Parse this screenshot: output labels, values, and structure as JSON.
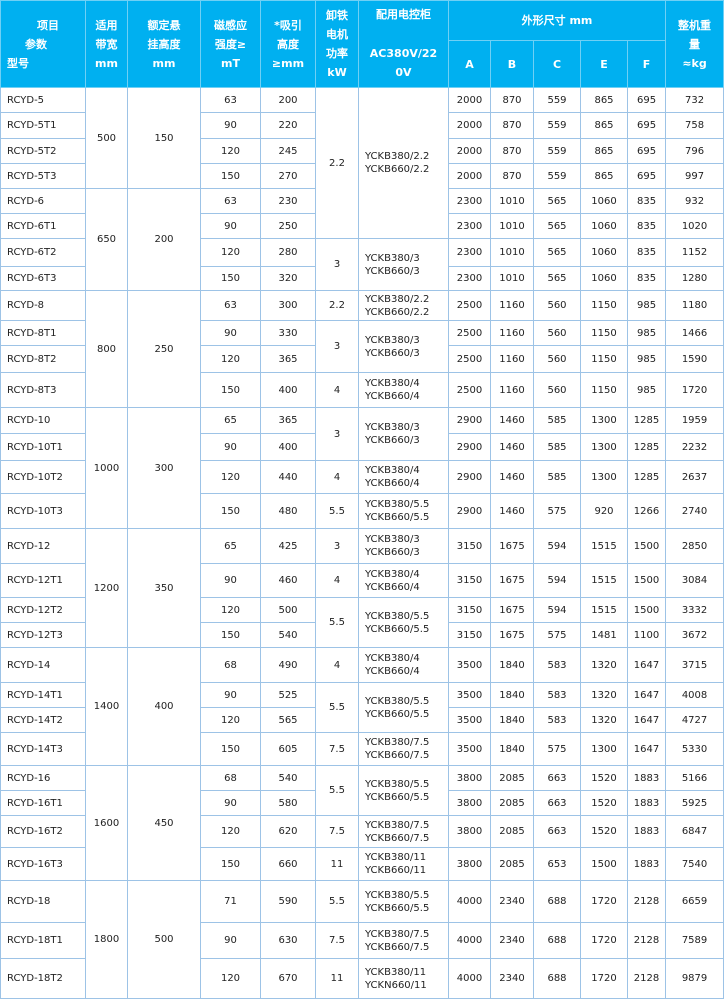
{
  "header": {
    "item_lines": [
      "项目",
      "参数",
      "型号"
    ],
    "belt_width": [
      "适用",
      "带宽",
      "mm"
    ],
    "rated_height": [
      "额定悬",
      "挂高度",
      "mm"
    ],
    "magnetic": [
      "磁感应",
      "强度≥",
      "mT"
    ],
    "suction": [
      "*吸引",
      "高度",
      "≥mm"
    ],
    "power": [
      "卸铁",
      "电机",
      "功率",
      "kW"
    ],
    "controller": [
      "配用电控柜",
      "AC380V/22",
      "0V"
    ],
    "dimensions": "外形尺寸 mm",
    "dim_cols": [
      "A",
      "B",
      "C",
      "E",
      "F"
    ],
    "weight": [
      "整机重",
      "量",
      "≈kg"
    ]
  },
  "belt_groups": [
    {
      "belt": "500",
      "height": "150",
      "rows": 4
    },
    {
      "belt": "650",
      "height": "200",
      "rows": 4
    },
    {
      "belt": "800",
      "height": "250",
      "rows": 4
    },
    {
      "belt": "1000",
      "height": "300",
      "rows": 4
    },
    {
      "belt": "1200",
      "height": "350",
      "rows": 4
    },
    {
      "belt": "1400",
      "height": "400",
      "rows": 4
    },
    {
      "belt": "1600",
      "height": "450",
      "rows": 4
    },
    {
      "belt": "1800",
      "height": "500",
      "rows": 3
    }
  ],
  "power_groups": [
    {
      "power": "2.2",
      "controller": [
        "YCKB380/2.2",
        "YCKB660/2.2"
      ],
      "rows": 6
    },
    {
      "power": "3",
      "controller": [
        "YCKB380/3",
        "YCKB660/3"
      ],
      "rows": 2
    },
    {
      "power": "2.2",
      "controller": [
        "YCKB380/2.2",
        "YCKB660/2.2"
      ],
      "rows": 1
    },
    {
      "power": "3",
      "controller": [
        "YCKB380/3",
        "YCKB660/3"
      ],
      "rows": 2
    },
    {
      "power": "4",
      "controller": [
        "YCKB380/4",
        "YCKB660/4"
      ],
      "rows": 1
    },
    {
      "power": "3",
      "controller": [
        "YCKB380/3",
        "YCKB660/3"
      ],
      "rows": 2
    },
    {
      "power": "4",
      "controller": [
        "YCKB380/4",
        "YCKB660/4"
      ],
      "rows": 1
    },
    {
      "power": "5.5",
      "controller": [
        "YCKB380/5.5",
        "YCKB660/5.5"
      ],
      "rows": 1
    },
    {
      "power": "3",
      "controller": [
        "YCKB380/3",
        "YCKB660/3"
      ],
      "rows": 1
    },
    {
      "power": "4",
      "controller": [
        "YCKB380/4",
        "YCKB660/4"
      ],
      "rows": 1
    },
    {
      "power": "5.5",
      "controller": [
        "YCKB380/5.5",
        "YCKB660/5.5"
      ],
      "rows": 2
    },
    {
      "power": "4",
      "controller": [
        "YCKB380/4",
        "YCKB660/4"
      ],
      "rows": 1
    },
    {
      "power": "5.5",
      "controller": [
        "YCKB380/5.5",
        "YCKB660/5.5"
      ],
      "rows": 2
    },
    {
      "power": "7.5",
      "controller": [
        "YCKB380/7.5",
        "YCKB660/7.5"
      ],
      "rows": 1
    },
    {
      "power": "5.5",
      "controller": [
        "YCKB380/5.5",
        "YCKB660/5.5"
      ],
      "rows": 2
    },
    {
      "power": "7.5",
      "controller": [
        "YCKB380/7.5",
        "YCKB660/7.5"
      ],
      "rows": 1
    },
    {
      "power": "11",
      "controller": [
        "YCKB380/11",
        "YCKB660/11"
      ],
      "rows": 1
    },
    {
      "power": "5.5",
      "controller": [
        "YCKB380/5.5",
        "YCKB660/5.5"
      ],
      "rows": 1
    },
    {
      "power": "7.5",
      "controller": [
        "YCKB380/7.5",
        "YCKB660/7.5"
      ],
      "rows": 1
    },
    {
      "power": "11",
      "controller": [
        "YCKB380/11",
        "YCKN660/11"
      ],
      "rows": 1
    }
  ],
  "rows": [
    [
      "RCYD-5",
      "63",
      "200",
      "2000",
      "870",
      "559",
      "865",
      "695",
      "732"
    ],
    [
      "RCYD-5T1",
      "90",
      "220",
      "2000",
      "870",
      "559",
      "865",
      "695",
      "758"
    ],
    [
      "RCYD-5T2",
      "120",
      "245",
      "2000",
      "870",
      "559",
      "865",
      "695",
      "796"
    ],
    [
      "RCYD-5T3",
      "150",
      "270",
      "2000",
      "870",
      "559",
      "865",
      "695",
      "997"
    ],
    [
      "RCYD-6",
      "63",
      "230",
      "2300",
      "1010",
      "565",
      "1060",
      "835",
      "932"
    ],
    [
      "RCYD-6T1",
      "90",
      "250",
      "2300",
      "1010",
      "565",
      "1060",
      "835",
      "1020"
    ],
    [
      "RCYD-6T2",
      "120",
      "280",
      "2300",
      "1010",
      "565",
      "1060",
      "835",
      "1152"
    ],
    [
      "RCYD-6T3",
      "150",
      "320",
      "2300",
      "1010",
      "565",
      "1060",
      "835",
      "1280"
    ],
    [
      "RCYD-8",
      "63",
      "300",
      "2500",
      "1160",
      "560",
      "1150",
      "985",
      "1180"
    ],
    [
      "RCYD-8T1",
      "90",
      "330",
      "2500",
      "1160",
      "560",
      "1150",
      "985",
      "1466"
    ],
    [
      "RCYD-8T2",
      "120",
      "365",
      "2500",
      "1160",
      "560",
      "1150",
      "985",
      "1590"
    ],
    [
      "RCYD-8T3",
      "150",
      "400",
      "2500",
      "1160",
      "560",
      "1150",
      "985",
      "1720"
    ],
    [
      "RCYD-10",
      "65",
      "365",
      "2900",
      "1460",
      "585",
      "1300",
      "1285",
      "1959"
    ],
    [
      "RCYD-10T1",
      "90",
      "400",
      "2900",
      "1460",
      "585",
      "1300",
      "1285",
      "2232"
    ],
    [
      "RCYD-10T2",
      "120",
      "440",
      "2900",
      "1460",
      "585",
      "1300",
      "1285",
      "2637"
    ],
    [
      "RCYD-10T3",
      "150",
      "480",
      "2900",
      "1460",
      "575",
      "920",
      "1266",
      "2740"
    ],
    [
      "RCYD-12",
      "65",
      "425",
      "3150",
      "1675",
      "594",
      "1515",
      "1500",
      "2850"
    ],
    [
      "RCYD-12T1",
      "90",
      "460",
      "3150",
      "1675",
      "594",
      "1515",
      "1500",
      "3084"
    ],
    [
      "RCYD-12T2",
      "120",
      "500",
      "3150",
      "1675",
      "594",
      "1515",
      "1500",
      "3332"
    ],
    [
      "RCYD-12T3",
      "150",
      "540",
      "3150",
      "1675",
      "575",
      "1481",
      "1100",
      "3672"
    ],
    [
      "RCYD-14",
      "68",
      "490",
      "3500",
      "1840",
      "583",
      "1320",
      "1647",
      "3715"
    ],
    [
      "RCYD-14T1",
      "90",
      "525",
      "3500",
      "1840",
      "583",
      "1320",
      "1647",
      "4008"
    ],
    [
      "RCYD-14T2",
      "120",
      "565",
      "3500",
      "1840",
      "583",
      "1320",
      "1647",
      "4727"
    ],
    [
      "RCYD-14T3",
      "150",
      "605",
      "3500",
      "1840",
      "575",
      "1300",
      "1647",
      "5330"
    ],
    [
      "RCYD-16",
      "68",
      "540",
      "3800",
      "2085",
      "663",
      "1520",
      "1883",
      "5166"
    ],
    [
      "RCYD-16T1",
      "90",
      "580",
      "3800",
      "2085",
      "663",
      "1520",
      "1883",
      "5925"
    ],
    [
      "RCYD-16T2",
      "120",
      "620",
      "3800",
      "2085",
      "663",
      "1520",
      "1883",
      "6847"
    ],
    [
      "RCYD-16T3",
      "150",
      "660",
      "3800",
      "2085",
      "653",
      "1500",
      "1883",
      "7540"
    ],
    [
      "RCYD-18",
      "71",
      "590",
      "4000",
      "2340",
      "688",
      "1720",
      "2128",
      "6659"
    ],
    [
      "RCYD-18T1",
      "90",
      "630",
      "4000",
      "2340",
      "688",
      "1720",
      "2128",
      "7589"
    ],
    [
      "RCYD-18T2",
      "120",
      "670",
      "4000",
      "2340",
      "688",
      "1720",
      "2128",
      "9879"
    ]
  ]
}
